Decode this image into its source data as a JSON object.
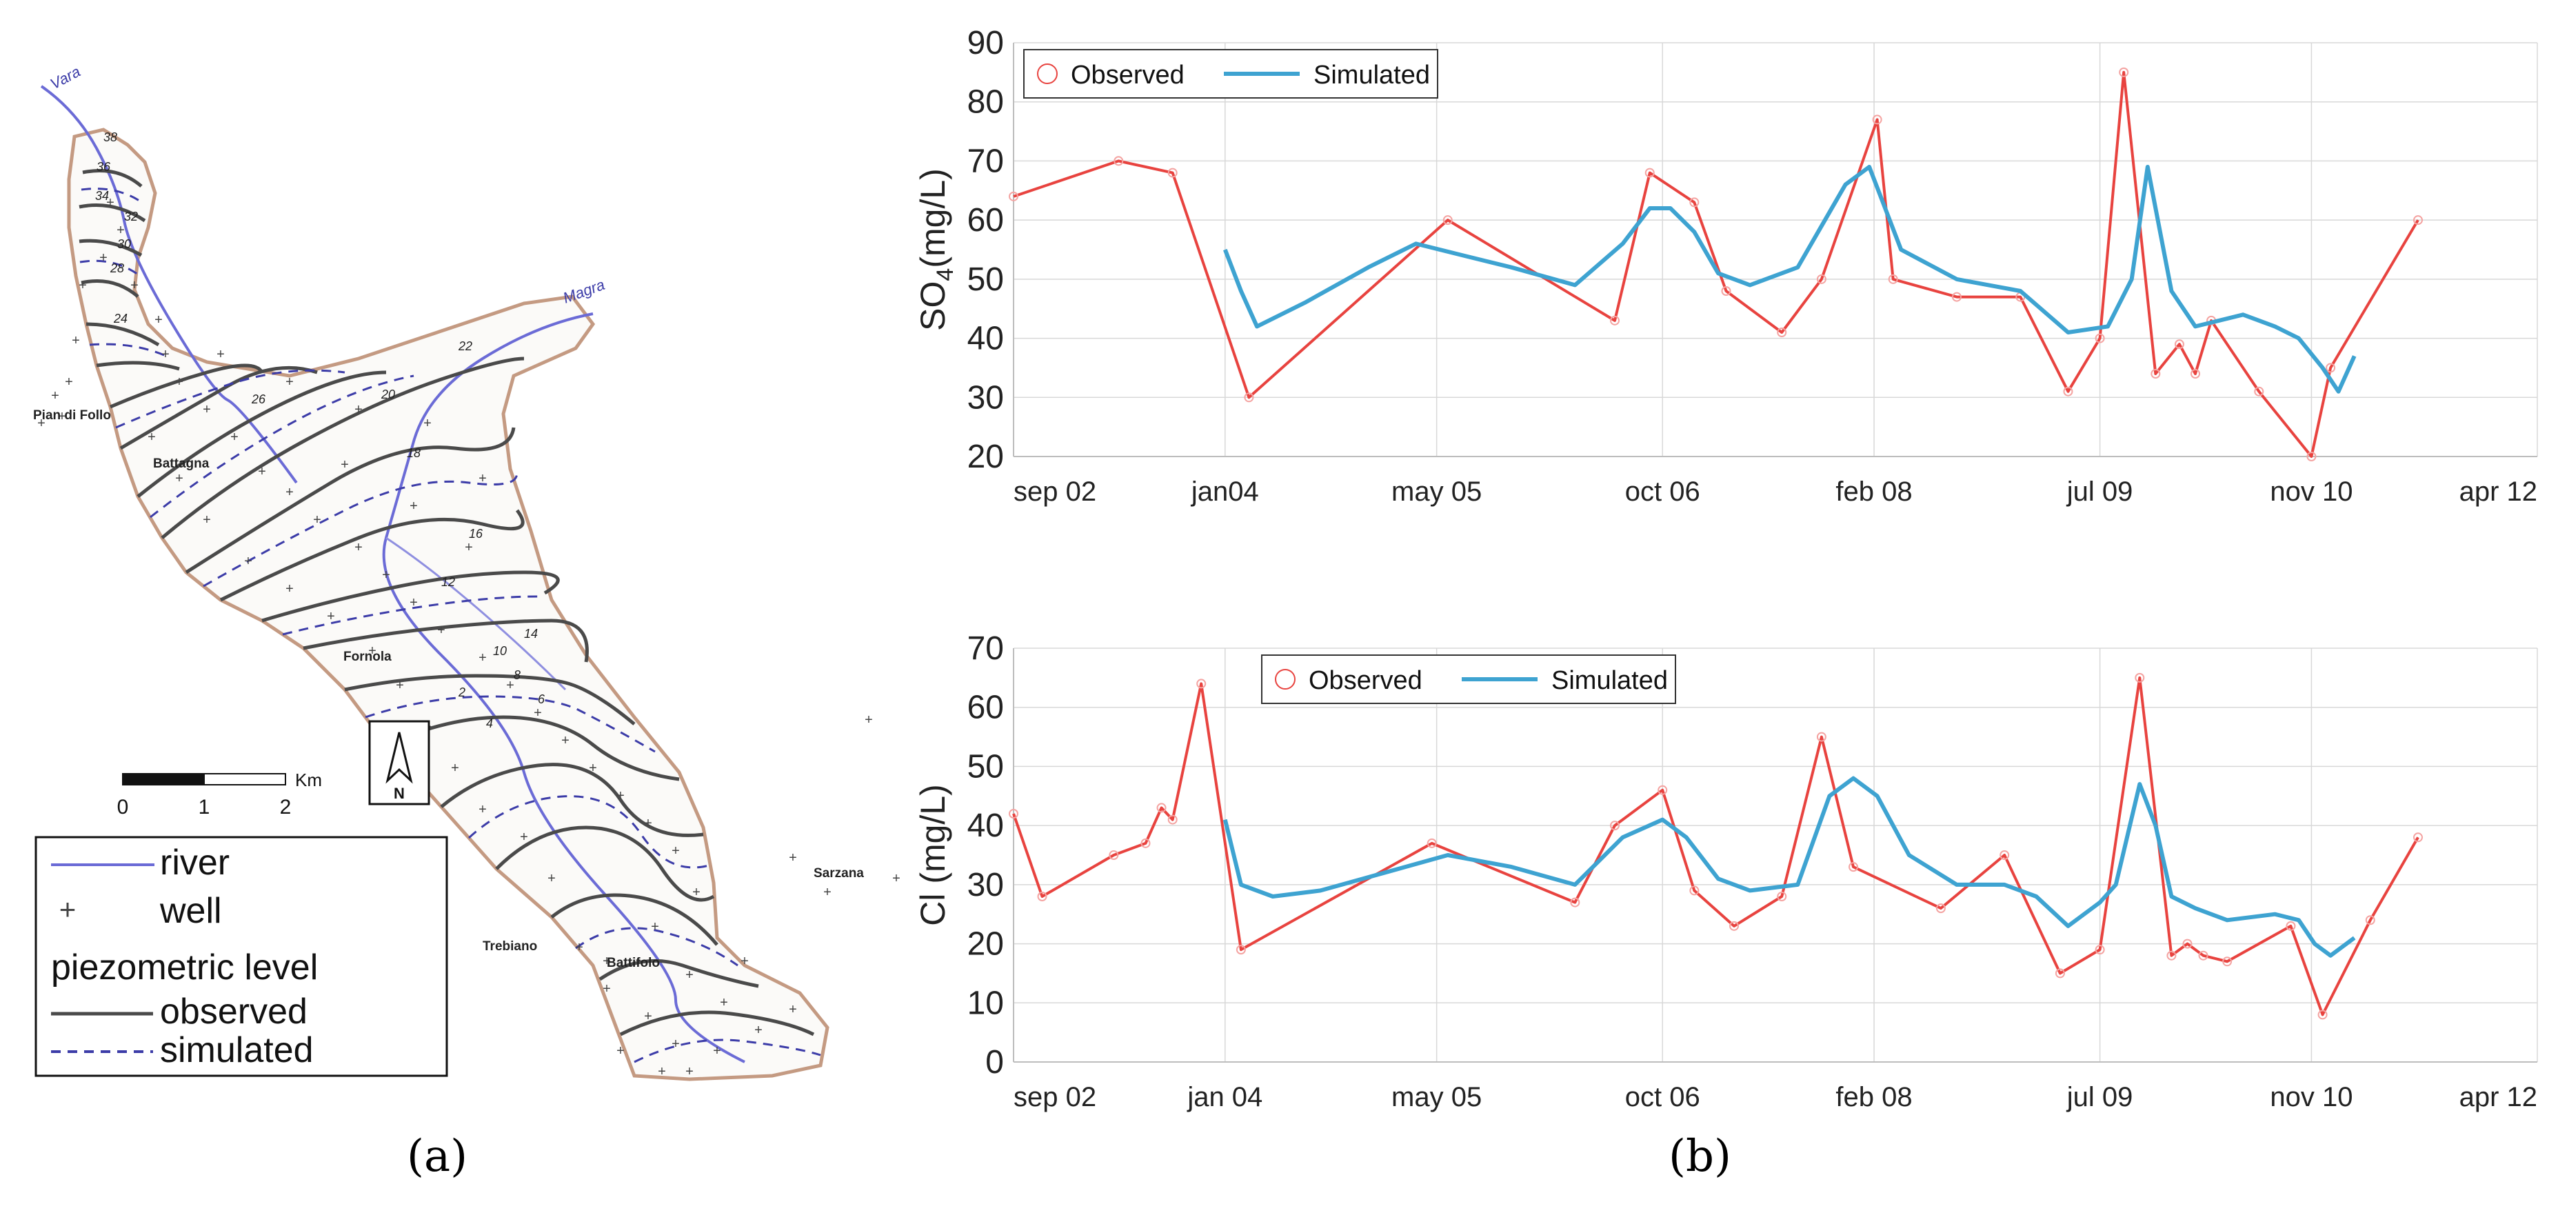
{
  "panel_a": {
    "caption": "(a)",
    "rivers": [
      "Vara",
      "Magra"
    ],
    "places": [
      "Pian di Follo",
      "Battagna",
      "Fornola",
      "Trebiano",
      "Sarzana",
      "Battifolo"
    ],
    "contour_labels": [
      "38",
      "36",
      "34",
      "32",
      "30",
      "28",
      "26",
      "24",
      "22",
      "20",
      "18",
      "16",
      "14",
      "12",
      "10",
      "8",
      "6",
      "4",
      "2"
    ],
    "scale": {
      "ticks": [
        "0",
        "1",
        "2"
      ],
      "unit": "Km"
    },
    "north_label": "N",
    "legend": {
      "river": "river",
      "well": "well",
      "title": "piezometric level",
      "observed": "observed",
      "simulated": "simulated"
    },
    "colors": {
      "boundary": "#c49a82",
      "river": "#6b6bd6",
      "observed": "#4a4a4a",
      "simulated": "#3c3ca8",
      "well": "#444444"
    }
  },
  "panel_b": {
    "caption": "(b)"
  },
  "chart_data": [
    {
      "type": "line",
      "title": "",
      "xlabel": "",
      "ylabel": "SO4(mg/L)",
      "ylabel_main": "SO",
      "ylabel_sub": "4",
      "ylabel_rest": "(mg/L)",
      "ylim": [
        20,
        90
      ],
      "yticks": [
        20,
        30,
        40,
        50,
        60,
        70,
        80,
        90
      ],
      "xlim": [
        2002.67,
        2012.25
      ],
      "xticks": [
        {
          "label": "sep 02",
          "x": 2002.67
        },
        {
          "label": "jan04",
          "x": 2004.0
        },
        {
          "label": "may 05",
          "x": 2005.33
        },
        {
          "label": "oct 06",
          "x": 2006.75
        },
        {
          "label": "feb 08",
          "x": 2008.08
        },
        {
          "label": "jul 09",
          "x": 2009.5
        },
        {
          "label": "nov 10",
          "x": 2010.83
        },
        {
          "label": "apr 12",
          "x": 2012.25
        }
      ],
      "legend": [
        {
          "name": "Observed",
          "color": "#e8433f",
          "marker": "circle"
        },
        {
          "name": "Simulated",
          "color": "#3ea3d1",
          "marker": "line"
        }
      ],
      "series": [
        {
          "name": "Observed",
          "color": "#e8433f",
          "x": [
            2002.67,
            2003.33,
            2003.67,
            2004.15,
            2005.4,
            2006.45,
            2006.67,
            2006.95,
            2007.15,
            2007.5,
            2007.75,
            2008.1,
            2008.2,
            2008.6,
            2009.0,
            2009.3,
            2009.5,
            2009.65,
            2009.85,
            2010.0,
            2010.1,
            2010.2,
            2010.5,
            2010.83,
            2010.95,
            2011.5
          ],
          "values": [
            64,
            70,
            68,
            30,
            60,
            43,
            68,
            63,
            48,
            41,
            50,
            77,
            50,
            47,
            47,
            31,
            40,
            85,
            34,
            39,
            34,
            43,
            31,
            20,
            35,
            60
          ]
        },
        {
          "name": "Simulated",
          "color": "#3ea3d1",
          "x": [
            2004.0,
            2004.1,
            2004.2,
            2004.5,
            2004.9,
            2005.2,
            2005.5,
            2005.8,
            2006.2,
            2006.5,
            2006.67,
            2006.8,
            2006.95,
            2007.1,
            2007.3,
            2007.6,
            2007.9,
            2008.05,
            2008.25,
            2008.6,
            2009.0,
            2009.3,
            2009.55,
            2009.7,
            2009.8,
            2009.95,
            2010.1,
            2010.4,
            2010.6,
            2010.75,
            2010.9,
            2011.0,
            2011.1
          ],
          "values": [
            55,
            48,
            42,
            46,
            52,
            56,
            54,
            52,
            49,
            56,
            62,
            62,
            58,
            51,
            49,
            52,
            66,
            69,
            55,
            50,
            48,
            41,
            42,
            50,
            69,
            48,
            42,
            44,
            42,
            40,
            35,
            31,
            37
          ]
        }
      ]
    },
    {
      "type": "line",
      "title": "",
      "xlabel": "",
      "ylabel": "Cl (mg/L)",
      "ylim": [
        0,
        70
      ],
      "yticks": [
        0,
        10,
        20,
        30,
        40,
        50,
        60,
        70
      ],
      "xlim": [
        2002.67,
        2012.25
      ],
      "xticks": [
        {
          "label": "sep 02",
          "x": 2002.67
        },
        {
          "label": "jan 04",
          "x": 2004.0
        },
        {
          "label": "may 05",
          "x": 2005.33
        },
        {
          "label": "oct 06",
          "x": 2006.75
        },
        {
          "label": "feb 08",
          "x": 2008.08
        },
        {
          "label": "jul 09",
          "x": 2009.5
        },
        {
          "label": "nov 10",
          "x": 2010.83
        },
        {
          "label": "apr 12",
          "x": 2012.25
        }
      ],
      "legend": [
        {
          "name": "Observed",
          "color": "#e8433f",
          "marker": "circle"
        },
        {
          "name": "Simulated",
          "color": "#3ea3d1",
          "marker": "line"
        }
      ],
      "series": [
        {
          "name": "Observed",
          "color": "#e8433f",
          "x": [
            2002.67,
            2002.85,
            2003.3,
            2003.5,
            2003.6,
            2003.67,
            2003.85,
            2004.1,
            2005.3,
            2006.2,
            2006.45,
            2006.75,
            2006.95,
            2007.2,
            2007.5,
            2007.75,
            2007.95,
            2008.5,
            2008.9,
            2009.25,
            2009.5,
            2009.75,
            2009.95,
            2010.05,
            2010.15,
            2010.3,
            2010.7,
            2010.9,
            2011.2,
            2011.5
          ],
          "values": [
            42,
            28,
            35,
            37,
            43,
            41,
            64,
            19,
            37,
            27,
            40,
            46,
            29,
            23,
            28,
            55,
            33,
            26,
            35,
            15,
            19,
            65,
            18,
            20,
            18,
            17,
            23,
            8,
            24,
            38
          ]
        },
        {
          "name": "Simulated",
          "color": "#3ea3d1",
          "x": [
            2004.0,
            2004.1,
            2004.3,
            2004.6,
            2005.0,
            2005.4,
            2005.8,
            2006.2,
            2006.5,
            2006.75,
            2006.9,
            2007.1,
            2007.3,
            2007.6,
            2007.8,
            2007.95,
            2008.1,
            2008.3,
            2008.6,
            2008.9,
            2009.1,
            2009.3,
            2009.5,
            2009.6,
            2009.75,
            2009.85,
            2009.95,
            2010.1,
            2010.3,
            2010.6,
            2010.75,
            2010.85,
            2010.95,
            2011.1
          ],
          "values": [
            41,
            30,
            28,
            29,
            32,
            35,
            33,
            30,
            38,
            41,
            38,
            31,
            29,
            30,
            45,
            48,
            45,
            35,
            30,
            30,
            28,
            23,
            27,
            30,
            47,
            40,
            28,
            26,
            24,
            25,
            24,
            20,
            18,
            21
          ]
        }
      ]
    }
  ]
}
